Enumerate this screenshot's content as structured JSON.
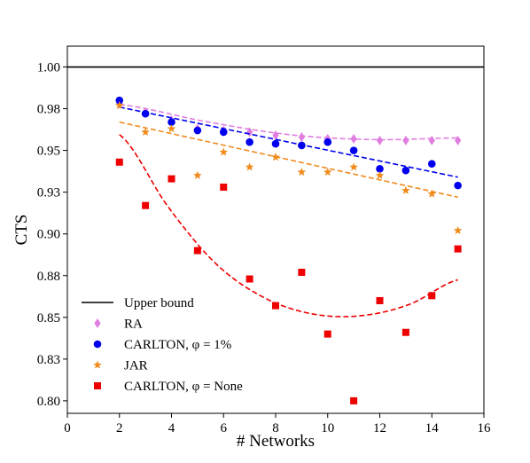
{
  "chart_data": {
    "type": "scatter",
    "xlabel": "# Networks",
    "ylabel": "CTS",
    "xlim": [
      0,
      16
    ],
    "ylim": [
      0.7925,
      1.0125
    ],
    "x_ticks": [
      0,
      2,
      4,
      6,
      8,
      10,
      12,
      14,
      16
    ],
    "y_ticks": [
      0.8,
      0.825,
      0.85,
      0.875,
      0.9,
      0.925,
      0.95,
      0.975,
      1.0
    ],
    "y_tick_labels": [
      "0.80",
      "0.83",
      "0.85",
      "0.88",
      "0.90",
      "0.93",
      "0.95",
      "0.98",
      "1.00"
    ],
    "grid": false,
    "legend": {
      "position": "lower-left",
      "entries": [
        "Upper bound",
        "RA",
        "CARLTON, φ = 1%",
        "JAR",
        "CARLTON, φ =  None"
      ]
    },
    "upper_bound": {
      "name": "Upper bound",
      "y": 1.0,
      "color": "#000000"
    },
    "series": [
      {
        "name": "RA",
        "marker": "diamond",
        "color": "#e07ee0",
        "x": [
          2,
          3,
          4,
          5,
          6,
          7,
          8,
          9,
          10,
          11,
          12,
          13,
          14,
          15
        ],
        "values": [
          0.978,
          0.973,
          0.968,
          0.963,
          0.962,
          0.961,
          0.959,
          0.958,
          0.957,
          0.957,
          0.956,
          0.956,
          0.956,
          0.956
        ],
        "fit": [
          0.9775,
          0.9675,
          0.9595,
          0.9565,
          0.9575
        ]
      },
      {
        "name": "CARLTON, φ = 1%",
        "marker": "circle",
        "color": "#0000ee",
        "x": [
          2,
          3,
          4,
          5,
          6,
          7,
          8,
          9,
          10,
          11,
          12,
          13,
          14,
          15
        ],
        "values": [
          0.98,
          0.972,
          0.967,
          0.962,
          0.961,
          0.955,
          0.954,
          0.953,
          0.955,
          0.95,
          0.939,
          0.938,
          0.942,
          0.929
        ],
        "fit": [
          0.976,
          0.934
        ]
      },
      {
        "name": "JAR",
        "marker": "star",
        "color": "#f08c1e",
        "x": [
          2,
          3,
          4,
          5,
          6,
          7,
          8,
          9,
          10,
          11,
          12,
          13,
          14,
          15
        ],
        "values": [
          0.977,
          0.961,
          0.963,
          0.935,
          0.949,
          0.94,
          0.946,
          0.937,
          0.937,
          0.94,
          0.935,
          0.926,
          0.924,
          0.902
        ],
        "fit": [
          0.967,
          0.922
        ]
      },
      {
        "name": "CARLTON, φ =  None",
        "marker": "square",
        "color": "#ee0000",
        "x": [
          2,
          3,
          4,
          5,
          6,
          7,
          8,
          9,
          10,
          11,
          12,
          13,
          14,
          15
        ],
        "values": [
          0.943,
          0.917,
          0.933,
          0.89,
          0.928,
          0.873,
          0.857,
          0.877,
          0.84,
          0.8,
          0.86,
          0.841,
          0.863,
          0.891
        ],
        "fit": [
          0.9595,
          0.9165,
          0.882,
          0.8617,
          0.852,
          0.851,
          0.8578,
          0.8725
        ]
      }
    ]
  }
}
